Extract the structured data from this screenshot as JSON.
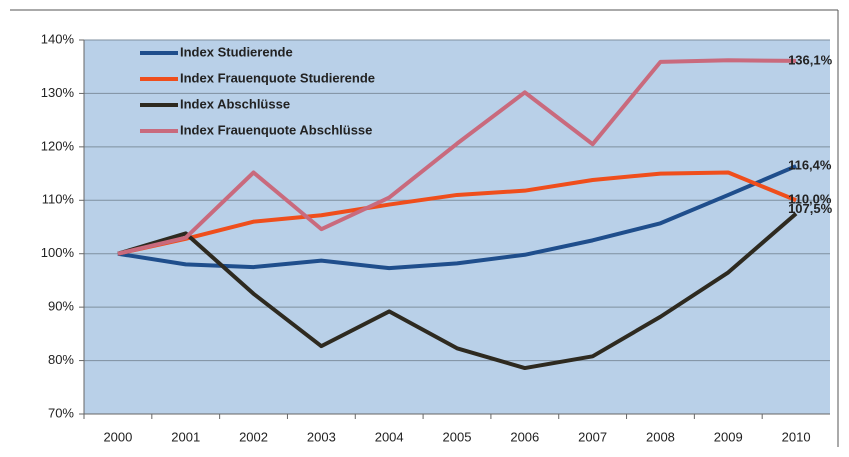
{
  "chart_data": {
    "type": "line",
    "categories": [
      "2000",
      "2001",
      "2002",
      "2003",
      "2004",
      "2005",
      "2006",
      "2007",
      "2008",
      "2009",
      "2010"
    ],
    "series": [
      {
        "name": "Index Studierende",
        "color": "#1f4e8c",
        "values": [
          100,
          98,
          97.5,
          98.7,
          97.3,
          98.2,
          99.8,
          102.5,
          105.7,
          111,
          116.4
        ],
        "value_labels": [
          null,
          null,
          null,
          null,
          null,
          null,
          null,
          null,
          null,
          null,
          "116,4%"
        ]
      },
      {
        "name": "Index Frauenquote Studierende",
        "color": "#ef4e1c",
        "values": [
          100,
          102.8,
          106,
          107.2,
          109.2,
          111,
          111.8,
          113.8,
          115,
          115.2,
          110.0
        ],
        "value_labels": [
          null,
          null,
          null,
          null,
          null,
          null,
          null,
          null,
          null,
          null,
          "110,0%"
        ]
      },
      {
        "name": "Index Abschlüsse",
        "color": "#2e2a20",
        "values": [
          100,
          103.8,
          92.5,
          82.7,
          89.2,
          82.3,
          78.6,
          80.8,
          88.2,
          96.5,
          107.5
        ],
        "value_labels": [
          null,
          null,
          null,
          null,
          null,
          null,
          null,
          null,
          null,
          null,
          "107,5%"
        ]
      },
      {
        "name": "Index Frauenquote Abschlüsse",
        "color": "#c96a7d",
        "values": [
          100,
          103,
          115.2,
          104.6,
          110.5,
          120.6,
          130.2,
          120.5,
          135.9,
          136.2,
          136.1
        ],
        "value_labels": [
          null,
          null,
          null,
          null,
          null,
          null,
          null,
          null,
          null,
          null,
          "136,1%"
        ]
      }
    ],
    "ylim": [
      70,
      140
    ],
    "yticks": [
      {
        "value": 70,
        "label": "70%"
      },
      {
        "value": 80,
        "label": "80%"
      },
      {
        "value": 90,
        "label": "90%"
      },
      {
        "value": 100,
        "label": "100%"
      },
      {
        "value": 110,
        "label": "110%"
      },
      {
        "value": 120,
        "label": "120%"
      },
      {
        "value": 130,
        "label": "130%"
      },
      {
        "value": 140,
        "label": "140%"
      }
    ],
    "grid": true,
    "legend": "top-left",
    "plot_background": "#b9d0e8"
  }
}
